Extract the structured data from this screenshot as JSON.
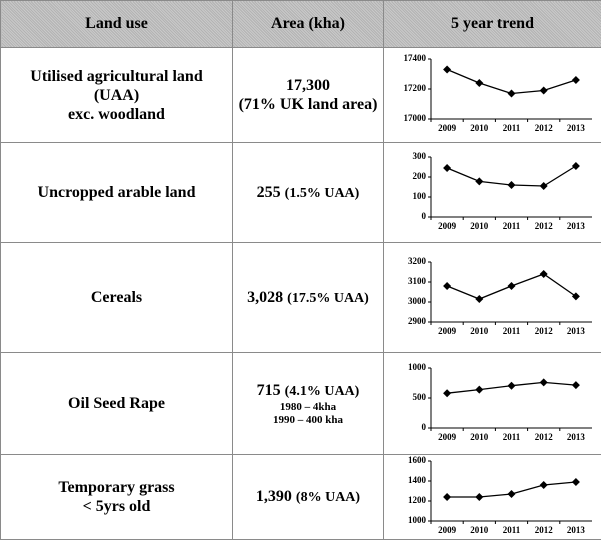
{
  "table": {
    "headers": [
      "Land use",
      "Area (kha)",
      "5 year trend"
    ],
    "rows": [
      {
        "land_use": [
          "Utilised agricultural land",
          "(UAA)",
          "exc. woodland"
        ],
        "area": "17,300",
        "area_note": "(71% UK land area)"
      },
      {
        "land_use": [
          "Uncropped arable land"
        ],
        "area": "255",
        "area_note": "(1.5% UAA)"
      },
      {
        "land_use": [
          "Cereals"
        ],
        "area": "3,028",
        "area_note": "(17.5% UAA)"
      },
      {
        "land_use": [
          "Oil Seed Rape"
        ],
        "area": "715",
        "area_note": "(4.1% UAA)",
        "area_history": [
          "1980 – 4kha",
          "1990 – 400 kha"
        ]
      },
      {
        "land_use": [
          "Temporary grass",
          "< 5yrs old"
        ],
        "area": "1,390",
        "area_note": "(8% UAA)"
      }
    ]
  },
  "chart_data": [
    {
      "type": "line",
      "categories": [
        "2009",
        "2010",
        "2011",
        "2012",
        "2013"
      ],
      "values": [
        17330,
        17240,
        17170,
        17190,
        17260
      ],
      "color": "#000000",
      "ylim": [
        17000,
        17400
      ],
      "yticks": [
        17000,
        17200,
        17400
      ]
    },
    {
      "type": "line",
      "categories": [
        "2009",
        "2010",
        "2011",
        "2012",
        "2013"
      ],
      "values": [
        245,
        178,
        160,
        155,
        255
      ],
      "color": "#000000",
      "ylim": [
        0,
        300
      ],
      "yticks": [
        0,
        100,
        200,
        300
      ]
    },
    {
      "type": "line",
      "categories": [
        "2009",
        "2010",
        "2011",
        "2012",
        "2013"
      ],
      "values": [
        3080,
        3015,
        3080,
        3140,
        3028
      ],
      "color": "#000000",
      "ylim": [
        2900,
        3200
      ],
      "yticks": [
        2900,
        3000,
        3100,
        3200
      ]
    },
    {
      "type": "line",
      "categories": [
        "2009",
        "2010",
        "2011",
        "2012",
        "2013"
      ],
      "values": [
        580,
        640,
        705,
        760,
        715
      ],
      "color": "#000000",
      "ylim": [
        0,
        1000
      ],
      "yticks": [
        0,
        500,
        1000
      ]
    },
    {
      "type": "line",
      "categories": [
        "2009",
        "2010",
        "2011",
        "2012",
        "2013"
      ],
      "values": [
        1240,
        1240,
        1270,
        1360,
        1390
      ],
      "color": "#000000",
      "ylim": [
        1000,
        1600
      ],
      "yticks": [
        1000,
        1200,
        1400,
        1600
      ]
    }
  ]
}
